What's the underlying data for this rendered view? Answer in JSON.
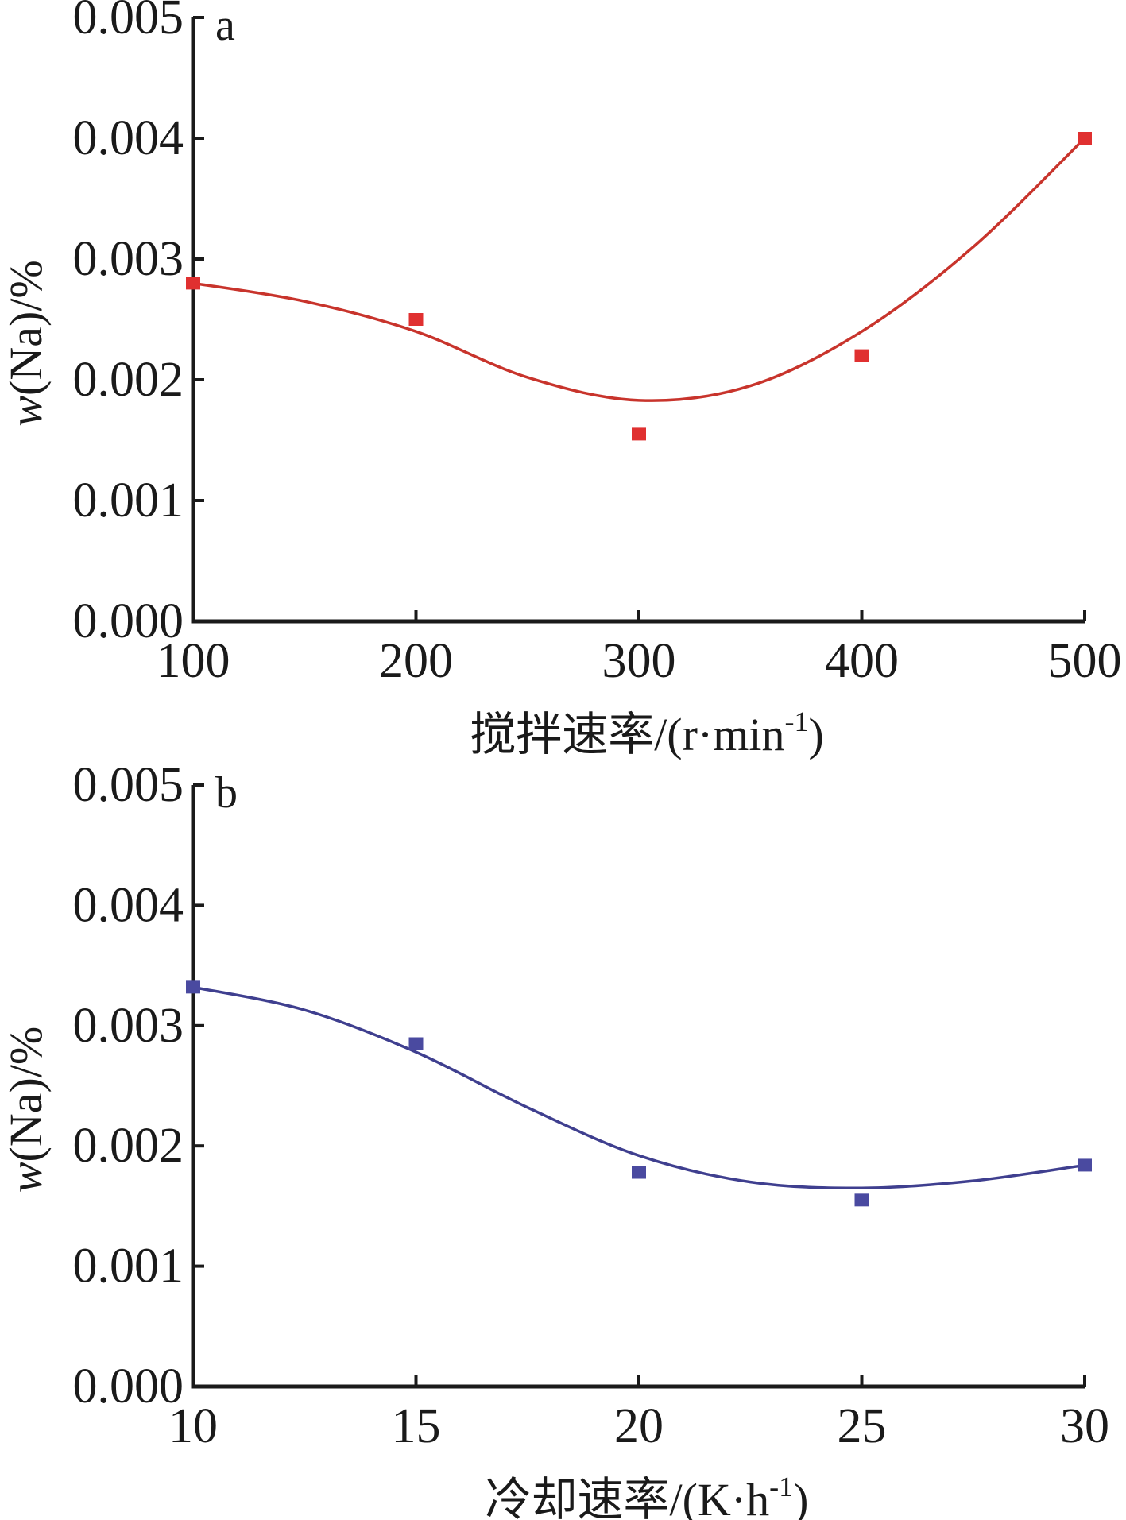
{
  "chart_data": [
    {
      "type": "scatter",
      "panel_label": "a",
      "xlabel": "搅拌速率/(r·min",
      "xlabel_sup": "-1",
      "xlabel_end": ")",
      "ylabel_italic": "w",
      "ylabel_rest": "(Na)/%",
      "xlim": [
        100,
        500
      ],
      "ylim": [
        0.0,
        0.005
      ],
      "x_ticks": [
        100,
        200,
        300,
        400,
        500
      ],
      "x_tick_labels": [
        "100",
        "200",
        "300",
        "400",
        "500"
      ],
      "y_ticks": [
        0.0,
        0.001,
        0.002,
        0.003,
        0.004,
        0.005
      ],
      "y_tick_labels": [
        "0.000",
        "0.001",
        "0.002",
        "0.003",
        "0.004",
        "0.005"
      ],
      "grid": false,
      "marker_color": "#e03030",
      "curve_color": "#c8342c",
      "points": [
        {
          "x": 100,
          "y": 0.0028
        },
        {
          "x": 200,
          "y": 0.0025
        },
        {
          "x": 300,
          "y": 0.00155
        },
        {
          "x": 400,
          "y": 0.0022
        },
        {
          "x": 500,
          "y": 0.004
        }
      ],
      "fit_curve": [
        {
          "x": 100,
          "y": 0.0028
        },
        {
          "x": 150,
          "y": 0.00265
        },
        {
          "x": 200,
          "y": 0.0024
        },
        {
          "x": 250,
          "y": 0.00202
        },
        {
          "x": 300,
          "y": 0.00183
        },
        {
          "x": 350,
          "y": 0.00195
        },
        {
          "x": 400,
          "y": 0.0024
        },
        {
          "x": 450,
          "y": 0.0031
        },
        {
          "x": 500,
          "y": 0.004
        }
      ]
    },
    {
      "type": "scatter",
      "panel_label": "b",
      "xlabel": "冷却速率/(K·h",
      "xlabel_sup": "-1",
      "xlabel_end": ")",
      "ylabel_italic": "w",
      "ylabel_rest": "(Na)/%",
      "xlim": [
        10,
        30
      ],
      "ylim": [
        0.0,
        0.005
      ],
      "x_ticks": [
        10,
        15,
        20,
        25,
        30
      ],
      "x_tick_labels": [
        "10",
        "15",
        "20",
        "25",
        "30"
      ],
      "y_ticks": [
        0.0,
        0.001,
        0.002,
        0.003,
        0.004,
        0.005
      ],
      "y_tick_labels": [
        "0.000",
        "0.001",
        "0.002",
        "0.003",
        "0.004",
        "0.005"
      ],
      "grid": false,
      "marker_color": "#4a4aa0",
      "curve_color": "#3f3f8f",
      "points": [
        {
          "x": 10,
          "y": 0.00332
        },
        {
          "x": 15,
          "y": 0.00285
        },
        {
          "x": 20,
          "y": 0.00178
        },
        {
          "x": 25,
          "y": 0.00155
        },
        {
          "x": 30,
          "y": 0.00184
        }
      ],
      "fit_curve": [
        {
          "x": 10,
          "y": 0.00332
        },
        {
          "x": 12.5,
          "y": 0.00313
        },
        {
          "x": 15,
          "y": 0.00278
        },
        {
          "x": 17.5,
          "y": 0.00232
        },
        {
          "x": 20,
          "y": 0.00192
        },
        {
          "x": 22.5,
          "y": 0.0017
        },
        {
          "x": 25,
          "y": 0.00165
        },
        {
          "x": 27.5,
          "y": 0.00171
        },
        {
          "x": 30,
          "y": 0.00184
        }
      ]
    }
  ]
}
